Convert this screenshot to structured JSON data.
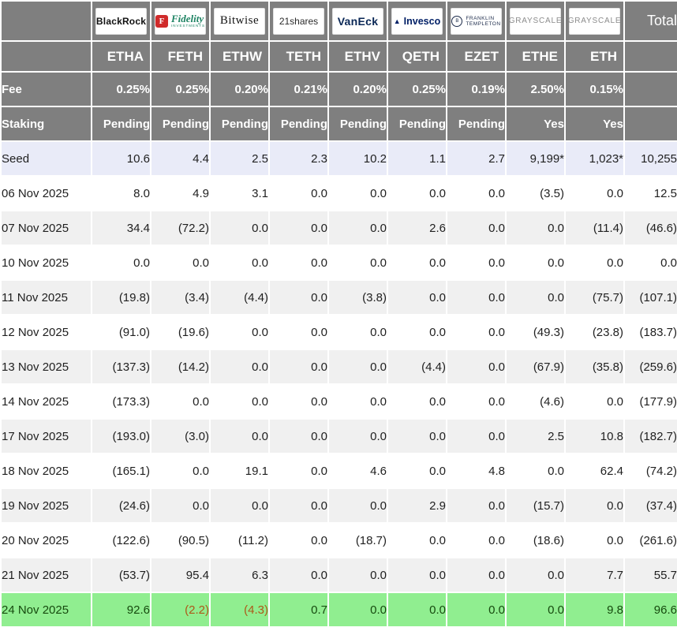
{
  "chart_data": {
    "type": "table",
    "title": "Ethereum ETF Daily Flow Table",
    "corner_label": "",
    "total_header": "Total",
    "fee_row_label": "Fee",
    "staking_row_label": "Staking",
    "columns": [
      {
        "issuer": "BlackRock",
        "logo": "blackrock",
        "logo_text": "BlackRock",
        "ticker": "ETHA",
        "fee": "0.25%",
        "staking": "Pending"
      },
      {
        "issuer": "Fidelity",
        "logo": "fidelity",
        "logo_icon": "F",
        "logo_text": "Fidelity",
        "logo_sub": "INVESTMENTS",
        "ticker": "FETH",
        "fee": "0.25%",
        "staking": "Pending"
      },
      {
        "issuer": "Bitwise",
        "logo": "bitwise",
        "logo_text": "Bitwise",
        "ticker": "ETHW",
        "fee": "0.20%",
        "staking": "Pending"
      },
      {
        "issuer": "21shares",
        "logo": "21shares",
        "logo_text": "21shares",
        "ticker": "TETH",
        "fee": "0.21%",
        "staking": "Pending"
      },
      {
        "issuer": "VanEck",
        "logo": "vaneck",
        "logo_text": "VanEck",
        "ticker": "ETHV",
        "fee": "0.20%",
        "staking": "Pending"
      },
      {
        "issuer": "Invesco",
        "logo": "invesco",
        "logo_icon": "▲",
        "logo_text": "Invesco",
        "ticker": "QETH",
        "fee": "0.25%",
        "staking": "Pending"
      },
      {
        "issuer": "Franklin Templeton",
        "logo": "franklin",
        "logo_icon": "B",
        "logo_lines": [
          "FRANKLIN",
          "TEMPLETON"
        ],
        "ticker": "EZET",
        "fee": "0.19%",
        "staking": "Pending"
      },
      {
        "issuer": "Grayscale",
        "logo": "grayscale",
        "logo_text": "GRAYSCALE",
        "ticker": "ETHE",
        "fee": "2.50%",
        "staking": "Yes"
      },
      {
        "issuer": "Grayscale",
        "logo": "grayscale",
        "logo_text": "GRAYSCALE",
        "ticker": "ETH",
        "fee": "0.15%",
        "staking": "Yes"
      }
    ],
    "rows": [
      {
        "label": "Seed",
        "style": "seed",
        "values": [
          "10.6",
          "4.4",
          "2.5",
          "2.3",
          "10.2",
          "1.1",
          "2.7",
          "9,199*",
          "1,023*",
          "10,255"
        ]
      },
      {
        "label": "06 Nov 2025",
        "style": "plain",
        "values": [
          "8.0",
          "4.9",
          "3.1",
          "0.0",
          "0.0",
          "0.0",
          "0.0",
          "(3.5)",
          "0.0",
          "12.5"
        ]
      },
      {
        "label": "07 Nov 2025",
        "style": "stripe",
        "values": [
          "34.4",
          "(72.2)",
          "0.0",
          "0.0",
          "0.0",
          "2.6",
          "0.0",
          "0.0",
          "(11.4)",
          "(46.6)"
        ]
      },
      {
        "label": "10 Nov 2025",
        "style": "plain",
        "values": [
          "0.0",
          "0.0",
          "0.0",
          "0.0",
          "0.0",
          "0.0",
          "0.0",
          "0.0",
          "0.0",
          "0.0"
        ]
      },
      {
        "label": "11 Nov 2025",
        "style": "stripe",
        "values": [
          "(19.8)",
          "(3.4)",
          "(4.4)",
          "0.0",
          "(3.8)",
          "0.0",
          "0.0",
          "0.0",
          "(75.7)",
          "(107.1)"
        ]
      },
      {
        "label": "12 Nov 2025",
        "style": "plain",
        "values": [
          "(91.0)",
          "(19.6)",
          "0.0",
          "0.0",
          "0.0",
          "0.0",
          "0.0",
          "(49.3)",
          "(23.8)",
          "(183.7)"
        ]
      },
      {
        "label": "13 Nov 2025",
        "style": "stripe",
        "values": [
          "(137.3)",
          "(14.2)",
          "0.0",
          "0.0",
          "0.0",
          "(4.4)",
          "0.0",
          "(67.9)",
          "(35.8)",
          "(259.6)"
        ]
      },
      {
        "label": "14 Nov 2025",
        "style": "plain",
        "values": [
          "(173.3)",
          "0.0",
          "0.0",
          "0.0",
          "0.0",
          "0.0",
          "0.0",
          "(4.6)",
          "0.0",
          "(177.9)"
        ]
      },
      {
        "label": "17 Nov 2025",
        "style": "stripe",
        "values": [
          "(193.0)",
          "(3.0)",
          "0.0",
          "0.0",
          "0.0",
          "0.0",
          "0.0",
          "2.5",
          "10.8",
          "(182.7)"
        ]
      },
      {
        "label": "18 Nov 2025",
        "style": "plain",
        "values": [
          "(165.1)",
          "0.0",
          "19.1",
          "0.0",
          "4.6",
          "0.0",
          "4.8",
          "0.0",
          "62.4",
          "(74.2)"
        ]
      },
      {
        "label": "19 Nov 2025",
        "style": "stripe",
        "values": [
          "(24.6)",
          "0.0",
          "0.0",
          "0.0",
          "0.0",
          "2.9",
          "0.0",
          "(15.7)",
          "0.0",
          "(37.4)"
        ]
      },
      {
        "label": "20 Nov 2025",
        "style": "plain",
        "values": [
          "(122.6)",
          "(90.5)",
          "(11.2)",
          "0.0",
          "(18.7)",
          "0.0",
          "0.0",
          "(18.6)",
          "0.0",
          "(261.6)"
        ]
      },
      {
        "label": "21 Nov 2025",
        "style": "stripe",
        "values": [
          "(53.7)",
          "95.4",
          "6.3",
          "0.0",
          "0.0",
          "0.0",
          "0.0",
          "0.0",
          "7.7",
          "55.7"
        ]
      },
      {
        "label": "24 Nov 2025",
        "style": "latest",
        "values": [
          "92.6",
          "(2.2)",
          "(4.3)",
          "0.7",
          "0.0",
          "0.0",
          "0.0",
          "0.0",
          "9.8",
          "96.6"
        ]
      }
    ],
    "colors": {
      "header_bg": "#7f7f7f",
      "stripe_bg": "#f0f0f0",
      "seed_bg": "#e9ebf8",
      "latest_bg": "#90ee90",
      "negative_text": "#c9463d",
      "latest_negative_text": "#ad5818",
      "latest_positive_text": "#164a0e"
    }
  }
}
